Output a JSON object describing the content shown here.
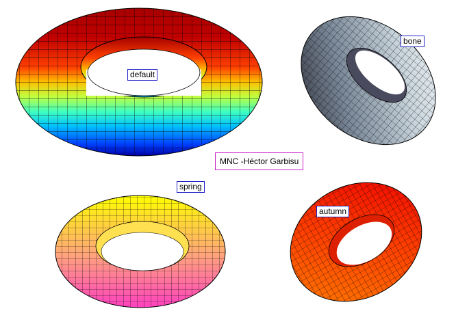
{
  "credit": "MNC -Héctor Garbisu",
  "tori": [
    {
      "id": "default",
      "label": "default",
      "colormap": "jet",
      "colors": [
        "#0000a6",
        "#0040ff",
        "#00c0ff",
        "#40ffbf",
        "#bfff40",
        "#ffc000",
        "#ff4000",
        "#a60000"
      ]
    },
    {
      "id": "bone",
      "label": "bone",
      "colormap": "bone",
      "colors": [
        "#1a1a24",
        "#4a4a5e",
        "#7a8898",
        "#a8b8c4",
        "#d4e0e6",
        "#f4f8fa"
      ]
    },
    {
      "id": "spring",
      "label": "spring",
      "colormap": "spring",
      "colors": [
        "#ff40bf",
        "#ff80a0",
        "#ffc060",
        "#ffff00"
      ]
    },
    {
      "id": "autumn",
      "label": "autumn",
      "colormap": "autumn",
      "colors": [
        "#ff0000",
        "#ff4000",
        "#ff8000"
      ]
    }
  ]
}
